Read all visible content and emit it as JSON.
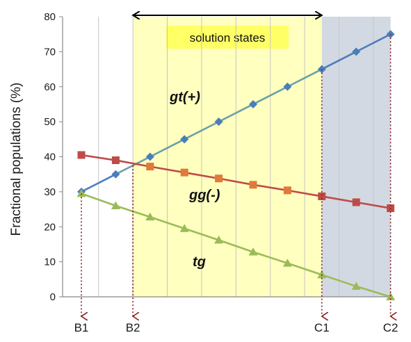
{
  "chart_data": {
    "type": "line",
    "ylabel": "Fractional populations (%)",
    "ylim": [
      0,
      80
    ],
    "y_ticks": [
      "0",
      "10",
      "20",
      "30",
      "40",
      "50",
      "60",
      "70",
      "80"
    ],
    "x": [
      0,
      1,
      2,
      3,
      4,
      5,
      6,
      7,
      8,
      9
    ],
    "grid": "vertical",
    "series": [
      {
        "name": "gt(+)",
        "marker": "diamond",
        "color": "#4a7ebb",
        "values": [
          30,
          35,
          40,
          45,
          50,
          55,
          60,
          65,
          70,
          75
        ]
      },
      {
        "name": "gg(-)",
        "marker": "square",
        "color": "#be4b48",
        "values": [
          40.5,
          39,
          37.2,
          35.5,
          33.8,
          32,
          30.4,
          28.7,
          27,
          25.3
        ]
      },
      {
        "name": "tg",
        "marker": "triangle",
        "color": "#9bbb59",
        "values": [
          29.5,
          26,
          22.8,
          19.5,
          16.2,
          12.8,
          9.6,
          6.3,
          3,
          0
        ]
      }
    ],
    "regions": [
      {
        "label": "solution states",
        "x_from": 1.5,
        "x_to": 7,
        "color": "#ffffbf",
        "label_bg": "#ffff66"
      },
      {
        "label": "",
        "x_from": 7,
        "x_to": 9,
        "color": "#d3d9e2"
      }
    ],
    "markers": [
      {
        "label": "B1",
        "x": 0
      },
      {
        "label": "B2",
        "x": 1.5
      },
      {
        "label": "C1",
        "x": 7
      },
      {
        "label": "C2",
        "x": 9
      }
    ],
    "arrow_range": {
      "x_from": 1.5,
      "x_to": 7
    }
  }
}
